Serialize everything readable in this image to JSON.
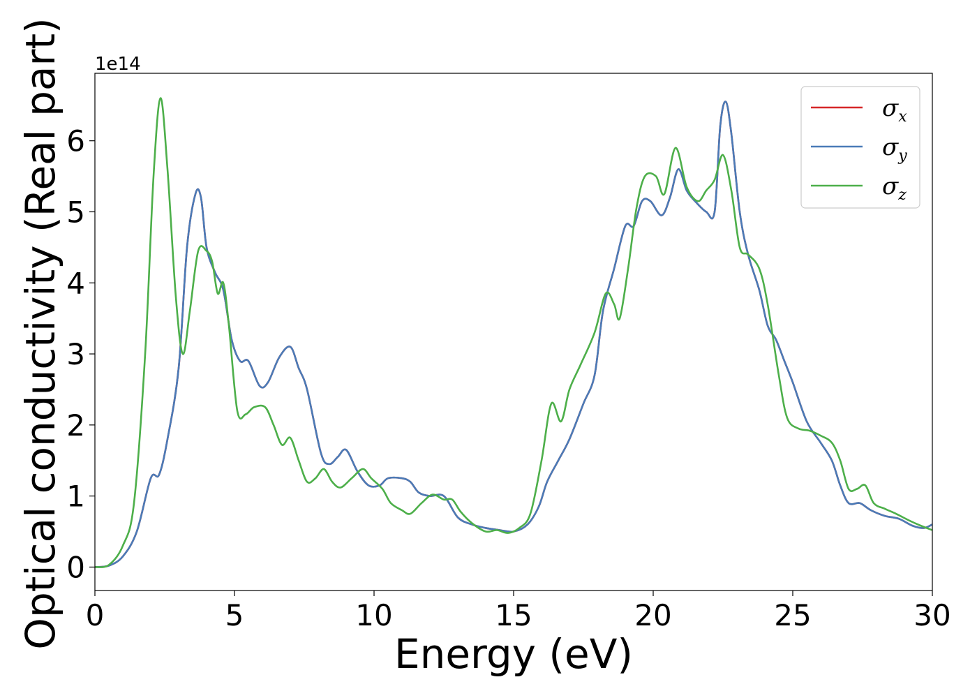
{
  "chart_data": {
    "type": "line",
    "xlabel": "Energy (eV)",
    "ylabel": "Optical conductivity (Real part)",
    "y_offset_text": "1e14",
    "xlim": [
      0,
      30
    ],
    "ylim": [
      -0.33,
      6.95
    ],
    "xticks": [
      0,
      5,
      10,
      15,
      20,
      25,
      30
    ],
    "xtick_labels": [
      "0",
      "5",
      "10",
      "15",
      "20",
      "25",
      "30"
    ],
    "yticks": [
      0,
      1,
      2,
      3,
      4,
      5,
      6
    ],
    "ytick_labels": [
      "0",
      "1",
      "2",
      "3",
      "4",
      "5",
      "6"
    ],
    "grid": false,
    "legend": {
      "position": "top-right",
      "entries": [
        {
          "symbol": "σ",
          "sub": "x",
          "color": "#d62728"
        },
        {
          "symbol": "σ",
          "sub": "y",
          "color": "#4a7bb7"
        },
        {
          "symbol": "σ",
          "sub": "z",
          "color": "#4daf4a"
        }
      ]
    },
    "series": [
      {
        "key": "x",
        "color": "#d62728",
        "points": [
          [
            0,
            0
          ],
          [
            0.5,
            0.02
          ],
          [
            1,
            0.15
          ],
          [
            1.5,
            0.5
          ],
          [
            2,
            1.25
          ],
          [
            2.3,
            1.3
          ],
          [
            2.6,
            1.8
          ],
          [
            3,
            2.8
          ],
          [
            3.3,
            4.5
          ],
          [
            3.6,
            5.25
          ],
          [
            3.8,
            5.2
          ],
          [
            4,
            4.5
          ],
          [
            4.3,
            4.15
          ],
          [
            4.6,
            3.9
          ],
          [
            4.9,
            3.2
          ],
          [
            5.2,
            2.9
          ],
          [
            5.5,
            2.9
          ],
          [
            5.9,
            2.55
          ],
          [
            6.2,
            2.6
          ],
          [
            6.6,
            2.95
          ],
          [
            7,
            3.1
          ],
          [
            7.3,
            2.8
          ],
          [
            7.6,
            2.5
          ],
          [
            8.1,
            1.6
          ],
          [
            8.4,
            1.45
          ],
          [
            8.7,
            1.55
          ],
          [
            9,
            1.65
          ],
          [
            9.4,
            1.35
          ],
          [
            9.8,
            1.15
          ],
          [
            10.2,
            1.15
          ],
          [
            10.5,
            1.25
          ],
          [
            11,
            1.25
          ],
          [
            11.3,
            1.2
          ],
          [
            11.6,
            1.05
          ],
          [
            12,
            1.0
          ],
          [
            12.5,
            1.0
          ],
          [
            13,
            0.7
          ],
          [
            13.5,
            0.6
          ],
          [
            14,
            0.55
          ],
          [
            14.5,
            0.52
          ],
          [
            15,
            0.5
          ],
          [
            15.5,
            0.6
          ],
          [
            15.9,
            0.85
          ],
          [
            16.2,
            1.2
          ],
          [
            16.6,
            1.5
          ],
          [
            17,
            1.8
          ],
          [
            17.5,
            2.3
          ],
          [
            17.9,
            2.7
          ],
          [
            18.2,
            3.6
          ],
          [
            18.6,
            4.2
          ],
          [
            19,
            4.8
          ],
          [
            19.3,
            4.8
          ],
          [
            19.6,
            5.15
          ],
          [
            19.9,
            5.15
          ],
          [
            20.3,
            4.95
          ],
          [
            20.6,
            5.2
          ],
          [
            20.9,
            5.6
          ],
          [
            21.2,
            5.3
          ],
          [
            21.5,
            5.15
          ],
          [
            21.9,
            5.0
          ],
          [
            22.2,
            5.0
          ],
          [
            22.4,
            6.2
          ],
          [
            22.6,
            6.55
          ],
          [
            22.8,
            6.1
          ],
          [
            23.1,
            5.0
          ],
          [
            23.4,
            4.4
          ],
          [
            23.8,
            3.9
          ],
          [
            24.1,
            3.4
          ],
          [
            24.4,
            3.2
          ],
          [
            24.7,
            2.9
          ],
          [
            25,
            2.6
          ],
          [
            25.5,
            2.05
          ],
          [
            26,
            1.75
          ],
          [
            26.4,
            1.5
          ],
          [
            26.7,
            1.15
          ],
          [
            27,
            0.9
          ],
          [
            27.4,
            0.9
          ],
          [
            27.8,
            0.8
          ],
          [
            28.3,
            0.72
          ],
          [
            28.8,
            0.68
          ],
          [
            29.3,
            0.58
          ],
          [
            29.7,
            0.55
          ],
          [
            30,
            0.6
          ]
        ]
      },
      {
        "key": "y",
        "color": "#4a7bb7",
        "points": [
          [
            0,
            0
          ],
          [
            0.5,
            0.02
          ],
          [
            1,
            0.15
          ],
          [
            1.5,
            0.5
          ],
          [
            2,
            1.25
          ],
          [
            2.3,
            1.3
          ],
          [
            2.6,
            1.8
          ],
          [
            3,
            2.8
          ],
          [
            3.3,
            4.5
          ],
          [
            3.6,
            5.25
          ],
          [
            3.8,
            5.2
          ],
          [
            4,
            4.5
          ],
          [
            4.3,
            4.15
          ],
          [
            4.6,
            3.9
          ],
          [
            4.9,
            3.2
          ],
          [
            5.2,
            2.9
          ],
          [
            5.5,
            2.9
          ],
          [
            5.9,
            2.55
          ],
          [
            6.2,
            2.6
          ],
          [
            6.6,
            2.95
          ],
          [
            7,
            3.1
          ],
          [
            7.3,
            2.8
          ],
          [
            7.6,
            2.5
          ],
          [
            8.1,
            1.6
          ],
          [
            8.4,
            1.45
          ],
          [
            8.7,
            1.55
          ],
          [
            9,
            1.65
          ],
          [
            9.4,
            1.35
          ],
          [
            9.8,
            1.15
          ],
          [
            10.2,
            1.15
          ],
          [
            10.5,
            1.25
          ],
          [
            11,
            1.25
          ],
          [
            11.3,
            1.2
          ],
          [
            11.6,
            1.05
          ],
          [
            12,
            1.0
          ],
          [
            12.5,
            1.0
          ],
          [
            13,
            0.7
          ],
          [
            13.5,
            0.6
          ],
          [
            14,
            0.55
          ],
          [
            14.5,
            0.52
          ],
          [
            15,
            0.5
          ],
          [
            15.5,
            0.6
          ],
          [
            15.9,
            0.85
          ],
          [
            16.2,
            1.2
          ],
          [
            16.6,
            1.5
          ],
          [
            17,
            1.8
          ],
          [
            17.5,
            2.3
          ],
          [
            17.9,
            2.7
          ],
          [
            18.2,
            3.6
          ],
          [
            18.6,
            4.2
          ],
          [
            19,
            4.8
          ],
          [
            19.3,
            4.8
          ],
          [
            19.6,
            5.15
          ],
          [
            19.9,
            5.15
          ],
          [
            20.3,
            4.95
          ],
          [
            20.6,
            5.2
          ],
          [
            20.9,
            5.6
          ],
          [
            21.2,
            5.3
          ],
          [
            21.5,
            5.15
          ],
          [
            21.9,
            5.0
          ],
          [
            22.2,
            5.0
          ],
          [
            22.4,
            6.2
          ],
          [
            22.6,
            6.55
          ],
          [
            22.8,
            6.1
          ],
          [
            23.1,
            5.0
          ],
          [
            23.4,
            4.4
          ],
          [
            23.8,
            3.9
          ],
          [
            24.1,
            3.4
          ],
          [
            24.4,
            3.2
          ],
          [
            24.7,
            2.9
          ],
          [
            25,
            2.6
          ],
          [
            25.5,
            2.05
          ],
          [
            26,
            1.75
          ],
          [
            26.4,
            1.5
          ],
          [
            26.7,
            1.15
          ],
          [
            27,
            0.9
          ],
          [
            27.4,
            0.9
          ],
          [
            27.8,
            0.8
          ],
          [
            28.3,
            0.72
          ],
          [
            28.8,
            0.68
          ],
          [
            29.3,
            0.58
          ],
          [
            29.7,
            0.55
          ],
          [
            30,
            0.6
          ]
        ]
      },
      {
        "key": "z",
        "color": "#4daf4a",
        "points": [
          [
            0,
            0
          ],
          [
            0.5,
            0.03
          ],
          [
            1,
            0.3
          ],
          [
            1.4,
            0.9
          ],
          [
            1.8,
            3.0
          ],
          [
            2.1,
            5.5
          ],
          [
            2.35,
            6.6
          ],
          [
            2.6,
            5.6
          ],
          [
            2.9,
            3.8
          ],
          [
            3.15,
            3.0
          ],
          [
            3.4,
            3.6
          ],
          [
            3.7,
            4.45
          ],
          [
            4,
            4.45
          ],
          [
            4.2,
            4.3
          ],
          [
            4.4,
            3.85
          ],
          [
            4.6,
            4.0
          ],
          [
            4.8,
            3.4
          ],
          [
            5.1,
            2.2
          ],
          [
            5.4,
            2.15
          ],
          [
            5.7,
            2.25
          ],
          [
            6.1,
            2.25
          ],
          [
            6.4,
            2.0
          ],
          [
            6.7,
            1.72
          ],
          [
            7,
            1.82
          ],
          [
            7.3,
            1.5
          ],
          [
            7.6,
            1.2
          ],
          [
            7.9,
            1.25
          ],
          [
            8.2,
            1.38
          ],
          [
            8.5,
            1.2
          ],
          [
            8.8,
            1.12
          ],
          [
            9.2,
            1.25
          ],
          [
            9.6,
            1.38
          ],
          [
            9.9,
            1.25
          ],
          [
            10.3,
            1.1
          ],
          [
            10.6,
            0.9
          ],
          [
            11,
            0.8
          ],
          [
            11.3,
            0.75
          ],
          [
            11.7,
            0.9
          ],
          [
            12.1,
            1.02
          ],
          [
            12.5,
            0.95
          ],
          [
            12.8,
            0.95
          ],
          [
            13.1,
            0.78
          ],
          [
            13.5,
            0.62
          ],
          [
            14,
            0.5
          ],
          [
            14.4,
            0.52
          ],
          [
            14.8,
            0.48
          ],
          [
            15.2,
            0.55
          ],
          [
            15.6,
            0.75
          ],
          [
            16,
            1.5
          ],
          [
            16.35,
            2.3
          ],
          [
            16.7,
            2.05
          ],
          [
            17,
            2.5
          ],
          [
            17.4,
            2.85
          ],
          [
            17.9,
            3.3
          ],
          [
            18.3,
            3.85
          ],
          [
            18.6,
            3.7
          ],
          [
            18.8,
            3.5
          ],
          [
            19.1,
            4.2
          ],
          [
            19.4,
            5.05
          ],
          [
            19.7,
            5.5
          ],
          [
            20.1,
            5.5
          ],
          [
            20.4,
            5.25
          ],
          [
            20.8,
            5.9
          ],
          [
            21.2,
            5.35
          ],
          [
            21.6,
            5.15
          ],
          [
            21.9,
            5.3
          ],
          [
            22.2,
            5.45
          ],
          [
            22.5,
            5.8
          ],
          [
            22.8,
            5.3
          ],
          [
            23.1,
            4.5
          ],
          [
            23.4,
            4.4
          ],
          [
            23.8,
            4.2
          ],
          [
            24.1,
            3.7
          ],
          [
            24.5,
            2.7
          ],
          [
            24.8,
            2.1
          ],
          [
            25.2,
            1.95
          ],
          [
            25.6,
            1.92
          ],
          [
            26,
            1.85
          ],
          [
            26.4,
            1.75
          ],
          [
            26.7,
            1.5
          ],
          [
            27,
            1.1
          ],
          [
            27.3,
            1.1
          ],
          [
            27.6,
            1.15
          ],
          [
            27.9,
            0.9
          ],
          [
            28.3,
            0.82
          ],
          [
            28.7,
            0.75
          ],
          [
            29.2,
            0.65
          ],
          [
            29.6,
            0.58
          ],
          [
            30,
            0.52
          ]
        ]
      }
    ]
  }
}
